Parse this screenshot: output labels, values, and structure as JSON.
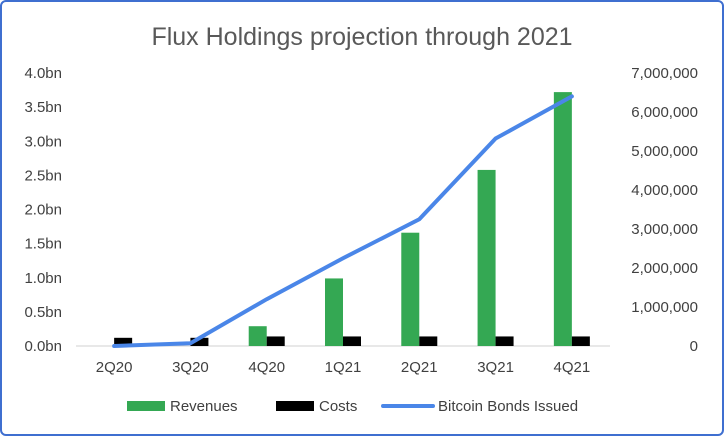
{
  "chart_data": {
    "type": "bar+line",
    "title": "Flux Holdings projection through 2021",
    "categories": [
      "2Q20",
      "3Q20",
      "4Q20",
      "1Q21",
      "2Q21",
      "3Q21",
      "4Q21"
    ],
    "series": [
      {
        "name": "Revenues",
        "type": "bar",
        "axis": "left",
        "color": "#34a853",
        "values": [
          0.0,
          0.0,
          0.29,
          0.99,
          1.66,
          2.58,
          3.72
        ]
      },
      {
        "name": "Costs",
        "type": "bar",
        "axis": "left",
        "color": "#000000",
        "values": [
          0.12,
          0.12,
          0.14,
          0.14,
          0.14,
          0.14,
          0.14
        ]
      },
      {
        "name": "Bitcoin Bonds Issued",
        "type": "line",
        "axis": "right",
        "color": "#4a86e8",
        "values": [
          0,
          70000,
          1200000,
          2250000,
          3250000,
          5320000,
          6400000
        ]
      }
    ],
    "left_axis": {
      "min": 0,
      "max": 4.0,
      "ticks": [
        0,
        0.5,
        1.0,
        1.5,
        2.0,
        2.5,
        3.0,
        3.5,
        4.0
      ],
      "tick_labels": [
        "0.0bn",
        "0.5bn",
        "1.0bn",
        "1.5bn",
        "2.0bn",
        "2.5bn",
        "3.0bn",
        "3.5bn",
        "4.0bn"
      ]
    },
    "right_axis": {
      "min": 0,
      "max": 7000000,
      "ticks": [
        0,
        1000000,
        2000000,
        3000000,
        4000000,
        5000000,
        6000000,
        7000000
      ],
      "tick_labels": [
        "0",
        "1,000,000",
        "2,000,000",
        "3,000,000",
        "4,000,000",
        "5,000,000",
        "6,000,000",
        "7,000,000"
      ]
    },
    "grid": false,
    "legend": "bottom"
  }
}
